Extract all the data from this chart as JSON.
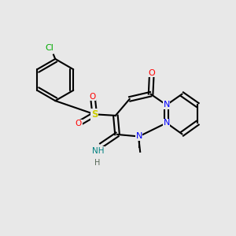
{
  "background_color": "#e8e8e8",
  "figsize": [
    3.0,
    3.0
  ],
  "dpi": 100,
  "bond_color": "#000000",
  "bond_lw": 1.5,
  "atom_colors": {
    "N": "#0000ff",
    "O": "#ff0000",
    "S": "#cccc00",
    "Cl": "#00aa00",
    "C": "#000000",
    "H": "#444444"
  },
  "font_size": 7.5
}
